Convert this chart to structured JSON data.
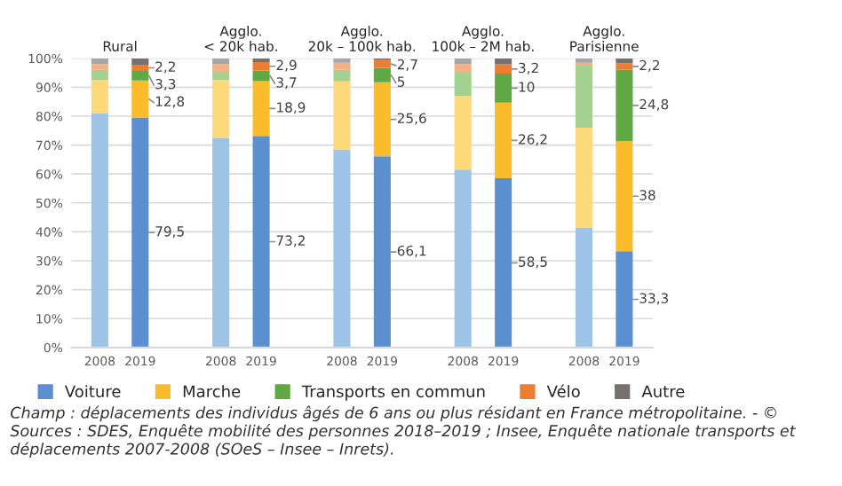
{
  "chart_data": {
    "type": "bar",
    "stacked": true,
    "categories": [
      "2008",
      "2019",
      null,
      "2008",
      "2019",
      null,
      "2008",
      "2019",
      null,
      "2008",
      "2019",
      null,
      "2008",
      "2019"
    ],
    "ylim": [
      0,
      100
    ],
    "yticks": [
      {
        "value": 0,
        "label": "0%"
      },
      {
        "value": 10,
        "label": "10%"
      },
      {
        "value": 20,
        "label": "20%"
      },
      {
        "value": 30,
        "label": "30%"
      },
      {
        "value": 40,
        "label": "40%"
      },
      {
        "value": 50,
        "label": "50%"
      },
      {
        "value": 60,
        "label": "60%"
      },
      {
        "value": 70,
        "label": "70%"
      },
      {
        "value": 80,
        "label": "80%"
      },
      {
        "value": 90,
        "label": "90%"
      },
      {
        "value": 100,
        "label": "100%"
      }
    ],
    "grid": "y",
    "legend": "bottom",
    "series": [
      {
        "name": "Voiture",
        "color": "#5b8fcf",
        "colors": [
          "#9dc3e6",
          "#5b8fcf",
          null,
          "#9dc3e6",
          "#5b8fcf",
          null,
          "#9dc3e6",
          "#5b8fcf",
          null,
          "#9dc3e6",
          "#5b8fcf",
          null,
          "#9dc3e6",
          "#5b8fcf"
        ],
        "values": [
          81,
          79.5,
          null,
          72.5,
          73.2,
          null,
          68.5,
          66.1,
          null,
          61.5,
          58.5,
          null,
          41.5,
          33.3
        ],
        "value_labels": [
          null,
          "79,5",
          null,
          null,
          "73,2",
          null,
          null,
          "66,1",
          null,
          null,
          "58,5",
          null,
          null,
          "33,3"
        ]
      },
      {
        "name": "Marche",
        "color": "#fbbc2c",
        "colors": [
          "#fdd97a",
          "#fbbc2c",
          null,
          "#fdd97a",
          "#fbbc2c",
          null,
          "#fdd97a",
          "#fbbc2c",
          null,
          "#fdd97a",
          "#fbbc2c",
          null,
          "#fdd97a",
          "#fbbc2c"
        ],
        "values": [
          11.5,
          12.8,
          null,
          20,
          18.9,
          null,
          23.5,
          25.6,
          null,
          25.5,
          26.2,
          null,
          34.5,
          38
        ],
        "value_labels": [
          null,
          "12,8",
          null,
          null,
          "18,9",
          null,
          null,
          "25,6",
          null,
          null,
          "26,2",
          null,
          null,
          "38"
        ]
      },
      {
        "name": "Transports en commun",
        "color": "#5fa843",
        "colors": [
          "#a3d18f",
          "#5fa843",
          null,
          "#a3d18f",
          "#5fa843",
          null,
          "#a3d18f",
          "#5fa843",
          null,
          "#a3d18f",
          "#5fa843",
          null,
          "#a3d18f",
          "#5fa843"
        ],
        "values": [
          3.5,
          3.3,
          null,
          2.5,
          3.7,
          null,
          4,
          5,
          null,
          8,
          10,
          null,
          21.5,
          24.8
        ],
        "value_labels": [
          null,
          "3,3",
          null,
          null,
          "3,7",
          null,
          null,
          "5",
          null,
          null,
          "10",
          null,
          null,
          "24,8"
        ]
      },
      {
        "name": "Vélo",
        "color": "#ed7d31",
        "colors": [
          "#f4b183",
          "#ed7d31",
          null,
          "#f4b183",
          "#ed7d31",
          null,
          "#f4b183",
          "#ed7d31",
          null,
          "#f4b183",
          "#ed7d31",
          null,
          "#f4b183",
          "#ed7d31"
        ],
        "values": [
          2,
          2.2,
          null,
          3,
          2.9,
          null,
          2.5,
          2.7,
          null,
          3,
          3.2,
          null,
          1,
          2.2
        ],
        "value_labels": [
          null,
          "2,2",
          null,
          null,
          "2,9",
          null,
          null,
          "2,7",
          null,
          null,
          "3,2",
          null,
          null,
          "2,2"
        ]
      },
      {
        "name": "Autre",
        "color": "#767171",
        "colors": [
          "#a6a6a6",
          "#767171",
          null,
          "#a6a6a6",
          "#767171",
          null,
          "#a6a6a6",
          "#767171",
          null,
          "#a6a6a6",
          "#767171",
          null,
          "#a6a6a6",
          "#767171"
        ],
        "values": [
          2,
          2.2,
          null,
          2,
          1.3,
          null,
          1.5,
          0.6,
          null,
          2,
          2.1,
          null,
          1.5,
          1.7
        ]
      }
    ],
    "annotations": [
      "Rural",
      "Agglo.\n< 20k hab.",
      "Agglo.\n20k – 100k hab.",
      "Agglo.\n100k – 2M hab.",
      "Agglo.\nParisienne",
      "Champ : déplacements des individus âgés de 6 ans ou plus résidant en France métropolitaine. - © Sources : SDES, Enquête mobilité des personnes 2018–2019 ; Insee, Enquête nationale transports et déplacements 2007-2008 (SOeS – Insee – Inrets)."
    ]
  }
}
